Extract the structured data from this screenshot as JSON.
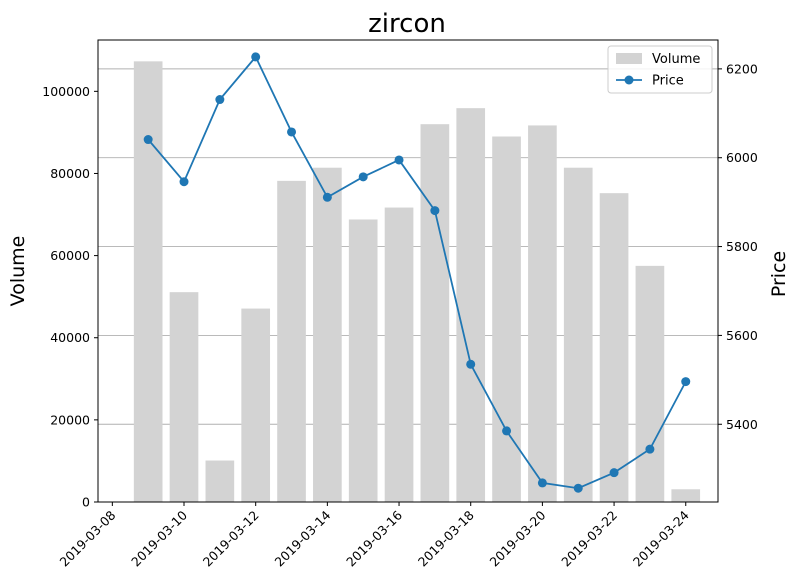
{
  "chart_data": {
    "type": "bar+line",
    "title": "zircon",
    "x_axis": {
      "type": "date",
      "ticks": [
        "2019-03-08",
        "2019-03-10",
        "2019-03-12",
        "2019-03-14",
        "2019-03-16",
        "2019-03-18",
        "2019-03-20",
        "2019-03-22",
        "2019-03-24"
      ],
      "range": [
        "2019-03-07.6",
        "2019-03-24.9"
      ]
    },
    "y_left": {
      "label": "Volume",
      "ticks": [
        0,
        20000,
        40000,
        60000,
        80000,
        100000
      ],
      "ylim": [
        0,
        112500
      ]
    },
    "y_right": {
      "label": "Price",
      "ticks": [
        5400,
        5600,
        5800,
        6000,
        6200
      ],
      "ylim": [
        5225,
        6265
      ],
      "grid": true
    },
    "legend": {
      "position": "top-right",
      "entries": [
        "Volume",
        "Price"
      ]
    },
    "x": [
      "2019-03-09",
      "2019-03-10",
      "2019-03-11",
      "2019-03-12",
      "2019-03-13",
      "2019-03-14",
      "2019-03-15",
      "2019-03-16",
      "2019-03-17",
      "2019-03-18",
      "2019-03-19",
      "2019-03-20",
      "2019-03-21",
      "2019-03-22",
      "2019-03-23",
      "2019-03-24"
    ],
    "series": [
      {
        "name": "Volume",
        "kind": "bar",
        "axis": "left",
        "color": "#d3d3d3",
        "values": [
          107300,
          51100,
          10100,
          47100,
          78200,
          81400,
          68800,
          71700,
          92000,
          95900,
          89000,
          91700,
          81400,
          75200,
          57500,
          3100
        ]
      },
      {
        "name": "Price",
        "kind": "line",
        "axis": "right",
        "color": "#1f77b4",
        "values": [
          6041,
          5946,
          6131,
          6227,
          6058,
          5911,
          5957,
          5995,
          5881,
          5535,
          5385,
          5268,
          5256,
          5291,
          5344,
          5496
        ]
      }
    ]
  }
}
